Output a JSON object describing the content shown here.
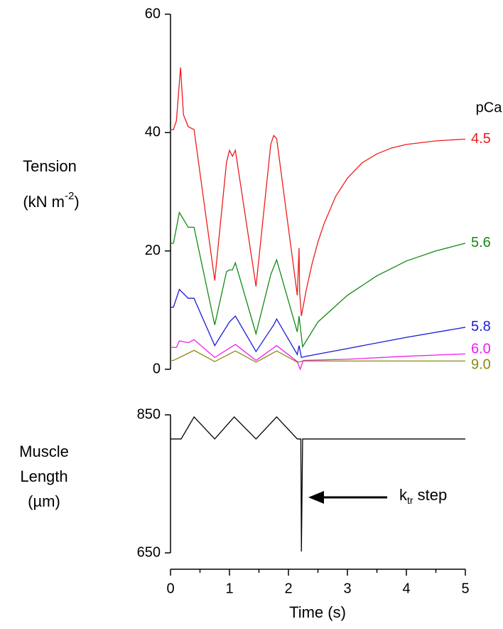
{
  "chart_data": [
    {
      "type": "line",
      "ylabel": {
        "line1": "Tension",
        "line2": "(kN m",
        "superscript": "-2",
        "line2_end": ")"
      },
      "legend_title": "pCa",
      "xlim": [
        0,
        5
      ],
      "ylim": [
        0,
        60
      ],
      "yticks": [
        0,
        20,
        40,
        60
      ],
      "series": [
        {
          "name": "4.5",
          "color": "#ee1c1c",
          "x": [
            0,
            0.05,
            0.1,
            0.17,
            0.22,
            0.3,
            0.4,
            0.42,
            0.75,
            0.95,
            1.0,
            1.05,
            1.1,
            1.45,
            1.7,
            1.75,
            1.8,
            2.15,
            2.18,
            2.19,
            2.22,
            2.3,
            2.4,
            2.5,
            2.6,
            2.8,
            3.0,
            3.25,
            3.5,
            3.75,
            4.0,
            4.5,
            5.0
          ],
          "values": [
            40.5,
            40.5,
            42,
            51,
            43,
            41,
            40.5,
            39,
            15,
            35,
            37,
            36,
            37,
            14,
            38,
            39.5,
            39,
            12.5,
            20.5,
            13,
            9,
            13.3,
            17.8,
            21.5,
            24.5,
            29.2,
            32.3,
            34.9,
            36.4,
            37.4,
            38.0,
            38.6,
            38.9
          ]
        },
        {
          "name": "5.6",
          "color": "#138a13",
          "x": [
            0,
            0.05,
            0.15,
            0.3,
            0.4,
            0.42,
            0.75,
            0.95,
            1.0,
            1.05,
            1.1,
            1.45,
            1.7,
            1.8,
            2.15,
            2.18,
            2.24,
            2.5,
            3.0,
            3.5,
            4.0,
            4.5,
            5.0
          ],
          "values": [
            21.3,
            21.3,
            26.5,
            24,
            24,
            23,
            7.5,
            16.5,
            16.8,
            16.8,
            18,
            6,
            16,
            18.5,
            6.3,
            9,
            3.8,
            8,
            12.5,
            15.8,
            18.3,
            20,
            21.3
          ]
        },
        {
          "name": "5.8",
          "color": "#1a1ad6",
          "x": [
            0,
            0.05,
            0.15,
            0.3,
            0.4,
            0.42,
            0.75,
            1.0,
            1.1,
            1.45,
            1.75,
            1.8,
            2.15,
            2.18,
            2.22,
            2.3,
            3.0,
            4.0,
            5.0
          ],
          "values": [
            10.5,
            10.5,
            13.5,
            12,
            12,
            11.5,
            4,
            8,
            9,
            3,
            7.5,
            8.5,
            2.5,
            4,
            2,
            2.2,
            3.5,
            5.4,
            7.1
          ]
        },
        {
          "name": "6.0",
          "color": "#f01cf0",
          "x": [
            0,
            0.1,
            0.15,
            0.3,
            0.4,
            0.75,
            1.1,
            1.45,
            1.8,
            2.15,
            2.2,
            2.25,
            3.0,
            4.0,
            5.0
          ],
          "values": [
            3.7,
            3.7,
            4.8,
            4.5,
            5,
            2,
            4.2,
            1.5,
            4,
            1.3,
            0,
            1.5,
            1.7,
            2.2,
            2.6
          ]
        },
        {
          "name": "9.0",
          "color": "#8a8a10",
          "x": [
            0,
            0.05,
            0.4,
            0.75,
            1.1,
            1.45,
            1.8,
            2.15,
            2.25,
            5.0
          ],
          "values": [
            1.5,
            1.5,
            3.2,
            1.3,
            3.1,
            1.2,
            3.1,
            1.2,
            1.4,
            1.4
          ]
        }
      ]
    },
    {
      "type": "line",
      "ylabel": {
        "line1": "Muscle",
        "line2": "Length",
        "line3": "(µm)"
      },
      "xlabel": "Time (s)",
      "annotation": {
        "main": "k",
        "subscript": "tr",
        "rest": " step"
      },
      "xlim": [
        0,
        5
      ],
      "xticks": [
        0,
        1,
        2,
        3,
        4,
        5
      ],
      "x_minor_ticks": [
        0.5,
        1.5,
        2.5,
        3.5,
        4.5
      ],
      "ylim": [
        650,
        850
      ],
      "yticks": [
        650,
        850
      ],
      "series": [
        {
          "color": "#000000",
          "x": [
            0,
            0.18,
            0.4,
            0.75,
            1.08,
            1.45,
            1.8,
            2.15,
            2.21,
            2.22,
            2.24,
            5
          ],
          "values": [
            815,
            815,
            847,
            815,
            847,
            815,
            847,
            815,
            815,
            652,
            815,
            815
          ]
        }
      ]
    }
  ]
}
